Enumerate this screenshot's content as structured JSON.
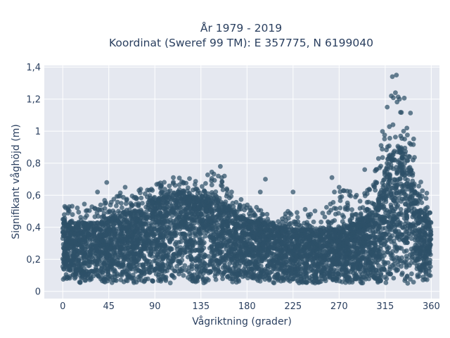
{
  "chart_data": {
    "type": "scatter",
    "title_line1": "År 1979 - 2019",
    "title_line2": "Koordinat (Sweref 99 TM): E 357775, N 6199040",
    "xlabel": "Vågriktning (grader)",
    "ylabel": "Signifikant våghöjd (m)",
    "xlim": [
      -18,
      368
    ],
    "ylim": [
      -0.045,
      1.41
    ],
    "x_ticks": [
      0,
      45,
      90,
      135,
      180,
      225,
      270,
      315,
      360
    ],
    "x_tick_labels": [
      "0",
      "45",
      "90",
      "135",
      "180",
      "225",
      "270",
      "315",
      "360"
    ],
    "y_ticks": [
      0,
      0.2,
      0.4,
      0.6,
      0.8,
      1.0,
      1.2,
      1.4
    ],
    "y_tick_labels": [
      "0",
      "0,2",
      "0,4",
      "0,6",
      "0,8",
      "1",
      "1,2",
      "1,4"
    ],
    "grid": true,
    "legend": "none",
    "marker_color": "#2e5068",
    "plot_bg": "#e5e8f0",
    "envelope": {
      "direction": [
        0,
        15,
        30,
        45,
        60,
        75,
        90,
        105,
        120,
        135,
        150,
        165,
        180,
        195,
        210,
        225,
        240,
        255,
        270,
        285,
        300,
        310,
        320,
        330,
        340,
        350,
        360
      ],
      "lower_height": [
        0.06,
        0.05,
        0.05,
        0.05,
        0.05,
        0.05,
        0.05,
        0.05,
        0.05,
        0.05,
        0.05,
        0.05,
        0.05,
        0.05,
        0.05,
        0.05,
        0.05,
        0.05,
        0.05,
        0.05,
        0.05,
        0.04,
        0.03,
        0.03,
        0.04,
        0.05,
        0.06
      ],
      "dense_upper_height": [
        0.44,
        0.42,
        0.42,
        0.45,
        0.48,
        0.5,
        0.56,
        0.6,
        0.6,
        0.56,
        0.58,
        0.5,
        0.44,
        0.42,
        0.4,
        0.38,
        0.38,
        0.38,
        0.4,
        0.42,
        0.48,
        0.62,
        0.85,
        0.9,
        0.78,
        0.5,
        0.44
      ],
      "sparse_upper_height": [
        0.55,
        0.55,
        0.56,
        0.6,
        0.62,
        0.65,
        0.68,
        0.72,
        0.7,
        0.72,
        0.78,
        0.62,
        0.55,
        0.52,
        0.5,
        0.5,
        0.52,
        0.6,
        0.64,
        0.62,
        0.68,
        0.95,
        1.2,
        1.35,
        1.15,
        0.7,
        0.55
      ]
    },
    "outliers": [
      [
        322,
        1.34
      ],
      [
        326,
        1.35
      ],
      [
        321,
        1.22
      ],
      [
        325,
        1.24
      ],
      [
        329,
        1.2
      ],
      [
        317,
        1.15
      ],
      [
        311,
        0.91
      ],
      [
        333,
        1.0
      ],
      [
        295,
        0.76
      ],
      [
        287,
        0.6
      ],
      [
        198,
        0.7
      ],
      [
        154,
        0.78
      ],
      [
        152,
        0.72
      ],
      [
        158,
        0.72
      ],
      [
        43,
        0.68
      ],
      [
        270,
        0.65
      ],
      [
        263,
        0.71
      ],
      [
        225,
        0.62
      ],
      [
        193,
        0.62
      ],
      [
        165,
        0.62
      ],
      [
        131,
        0.64
      ],
      [
        118,
        0.68
      ],
      [
        108,
        0.71
      ],
      [
        61,
        0.65
      ],
      [
        34,
        0.62
      ],
      [
        2,
        0.53
      ]
    ]
  }
}
